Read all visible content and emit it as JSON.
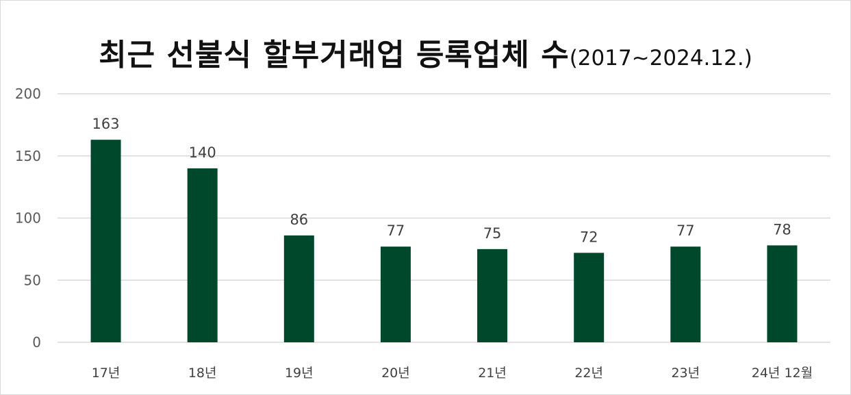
{
  "chart_data": {
    "type": "bar",
    "title": "최근 선불식 할부거래업 등록업체 수",
    "subtitle": "(2017~2024.12.)",
    "xlabel": "",
    "ylabel": "",
    "categories": [
      "17년",
      "18년",
      "19년",
      "20년",
      "21년",
      "22년",
      "23년",
      "24년 12월"
    ],
    "values": [
      163,
      140,
      86,
      77,
      75,
      72,
      77,
      78
    ],
    "data_labels": [
      "163",
      "140",
      "86",
      "77",
      "75",
      "72",
      "77",
      "78"
    ],
    "ylim": [
      0,
      200
    ],
    "yticks": [
      0,
      50,
      100,
      150,
      200
    ],
    "ytick_labels": [
      "0",
      "50",
      "100",
      "150",
      "200"
    ],
    "grid": true,
    "legend": "none",
    "bar_color": "#00482b",
    "grid_color": "#d9d9d9"
  }
}
